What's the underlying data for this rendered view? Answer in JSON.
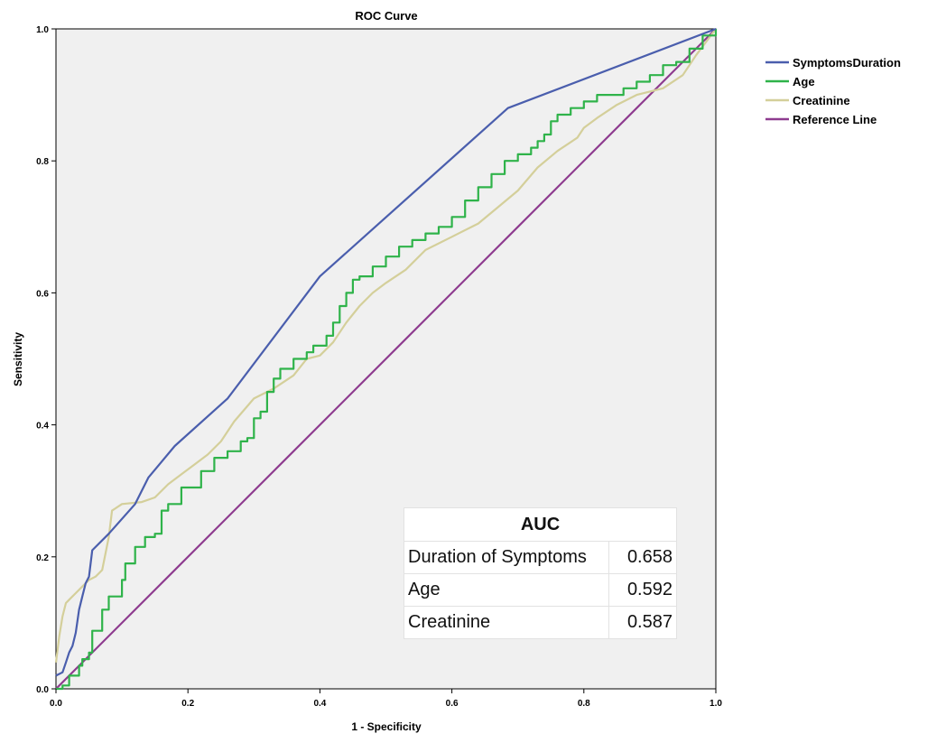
{
  "chart_data": {
    "type": "line",
    "title": "ROC Curve",
    "xlabel": "1 - Specificity",
    "ylabel": "Sensitivity",
    "xlim": [
      0,
      1
    ],
    "ylim": [
      0,
      1
    ],
    "x_ticks": [
      "0.0",
      "0.2",
      "0.4",
      "0.6",
      "0.8",
      "1.0"
    ],
    "y_ticks": [
      "0.0",
      "0.2",
      "0.4",
      "0.6",
      "0.8",
      "1.0"
    ],
    "grid": false,
    "legend_position": "top-right, outside plot",
    "series": [
      {
        "name": "SymptomsDuration",
        "color": "#4a5ead",
        "step": false,
        "points": [
          [
            0,
            0.02
          ],
          [
            0.01,
            0.025
          ],
          [
            0.015,
            0.04
          ],
          [
            0.02,
            0.055
          ],
          [
            0.025,
            0.065
          ],
          [
            0.03,
            0.085
          ],
          [
            0.035,
            0.12
          ],
          [
            0.04,
            0.14
          ],
          [
            0.045,
            0.16
          ],
          [
            0.05,
            0.17
          ],
          [
            0.055,
            0.21
          ],
          [
            0.08,
            0.235
          ],
          [
            0.12,
            0.28
          ],
          [
            0.14,
            0.32
          ],
          [
            0.18,
            0.368
          ],
          [
            0.26,
            0.44
          ],
          [
            0.4,
            0.625
          ],
          [
            0.685,
            0.88
          ],
          [
            1,
            1
          ]
        ]
      },
      {
        "name": "Age",
        "color": "#2fb34a",
        "step": true,
        "points": [
          [
            0,
            0
          ],
          [
            0.01,
            0.005
          ],
          [
            0.02,
            0.02
          ],
          [
            0.035,
            0.035
          ],
          [
            0.04,
            0.045
          ],
          [
            0.05,
            0.055
          ],
          [
            0.055,
            0.088
          ],
          [
            0.07,
            0.12
          ],
          [
            0.08,
            0.14
          ],
          [
            0.1,
            0.165
          ],
          [
            0.105,
            0.19
          ],
          [
            0.12,
            0.215
          ],
          [
            0.135,
            0.23
          ],
          [
            0.15,
            0.235
          ],
          [
            0.16,
            0.27
          ],
          [
            0.17,
            0.28
          ],
          [
            0.19,
            0.305
          ],
          [
            0.22,
            0.33
          ],
          [
            0.24,
            0.35
          ],
          [
            0.26,
            0.36
          ],
          [
            0.28,
            0.375
          ],
          [
            0.29,
            0.38
          ],
          [
            0.3,
            0.41
          ],
          [
            0.31,
            0.42
          ],
          [
            0.32,
            0.45
          ],
          [
            0.33,
            0.47
          ],
          [
            0.34,
            0.485
          ],
          [
            0.36,
            0.5
          ],
          [
            0.38,
            0.51
          ],
          [
            0.39,
            0.52
          ],
          [
            0.41,
            0.535
          ],
          [
            0.42,
            0.555
          ],
          [
            0.43,
            0.58
          ],
          [
            0.44,
            0.6
          ],
          [
            0.45,
            0.62
          ],
          [
            0.46,
            0.625
          ],
          [
            0.48,
            0.64
          ],
          [
            0.5,
            0.655
          ],
          [
            0.52,
            0.67
          ],
          [
            0.54,
            0.68
          ],
          [
            0.56,
            0.69
          ],
          [
            0.58,
            0.7
          ],
          [
            0.6,
            0.715
          ],
          [
            0.62,
            0.74
          ],
          [
            0.64,
            0.76
          ],
          [
            0.66,
            0.78
          ],
          [
            0.68,
            0.8
          ],
          [
            0.7,
            0.81
          ],
          [
            0.72,
            0.82
          ],
          [
            0.73,
            0.83
          ],
          [
            0.74,
            0.84
          ],
          [
            0.75,
            0.86
          ],
          [
            0.76,
            0.87
          ],
          [
            0.78,
            0.88
          ],
          [
            0.8,
            0.89
          ],
          [
            0.82,
            0.9
          ],
          [
            0.86,
            0.91
          ],
          [
            0.88,
            0.92
          ],
          [
            0.9,
            0.93
          ],
          [
            0.92,
            0.945
          ],
          [
            0.94,
            0.95
          ],
          [
            0.96,
            0.97
          ],
          [
            0.98,
            0.99
          ],
          [
            1,
            1
          ]
        ]
      },
      {
        "name": "Creatinine",
        "color": "#d4cf9a",
        "step": false,
        "points": [
          [
            0,
            0.04
          ],
          [
            0.005,
            0.08
          ],
          [
            0.01,
            0.11
          ],
          [
            0.015,
            0.13
          ],
          [
            0.02,
            0.135
          ],
          [
            0.03,
            0.145
          ],
          [
            0.04,
            0.155
          ],
          [
            0.05,
            0.165
          ],
          [
            0.06,
            0.17
          ],
          [
            0.07,
            0.18
          ],
          [
            0.08,
            0.23
          ],
          [
            0.085,
            0.27
          ],
          [
            0.1,
            0.28
          ],
          [
            0.13,
            0.283
          ],
          [
            0.15,
            0.29
          ],
          [
            0.17,
            0.31
          ],
          [
            0.19,
            0.325
          ],
          [
            0.21,
            0.34
          ],
          [
            0.23,
            0.355
          ],
          [
            0.25,
            0.375
          ],
          [
            0.27,
            0.405
          ],
          [
            0.3,
            0.44
          ],
          [
            0.33,
            0.455
          ],
          [
            0.36,
            0.475
          ],
          [
            0.38,
            0.5
          ],
          [
            0.4,
            0.505
          ],
          [
            0.42,
            0.525
          ],
          [
            0.44,
            0.555
          ],
          [
            0.46,
            0.58
          ],
          [
            0.48,
            0.6
          ],
          [
            0.5,
            0.615
          ],
          [
            0.53,
            0.635
          ],
          [
            0.56,
            0.665
          ],
          [
            0.6,
            0.685
          ],
          [
            0.64,
            0.705
          ],
          [
            0.67,
            0.73
          ],
          [
            0.7,
            0.755
          ],
          [
            0.73,
            0.79
          ],
          [
            0.76,
            0.815
          ],
          [
            0.79,
            0.835
          ],
          [
            0.8,
            0.85
          ],
          [
            0.82,
            0.865
          ],
          [
            0.85,
            0.885
          ],
          [
            0.88,
            0.9
          ],
          [
            0.92,
            0.91
          ],
          [
            0.95,
            0.93
          ],
          [
            0.97,
            0.96
          ],
          [
            1,
            1
          ]
        ]
      },
      {
        "name": "Reference Line",
        "color": "#8e3b8f",
        "step": false,
        "points": [
          [
            0,
            0
          ],
          [
            1,
            1
          ]
        ]
      }
    ],
    "annotation_table": {
      "header": "AUC",
      "rows": [
        {
          "label": "Duration of Symptoms",
          "value": "0.658"
        },
        {
          "label": "Age",
          "value": "0.592"
        },
        {
          "label": "Creatinine",
          "value": "0.587"
        }
      ]
    }
  }
}
